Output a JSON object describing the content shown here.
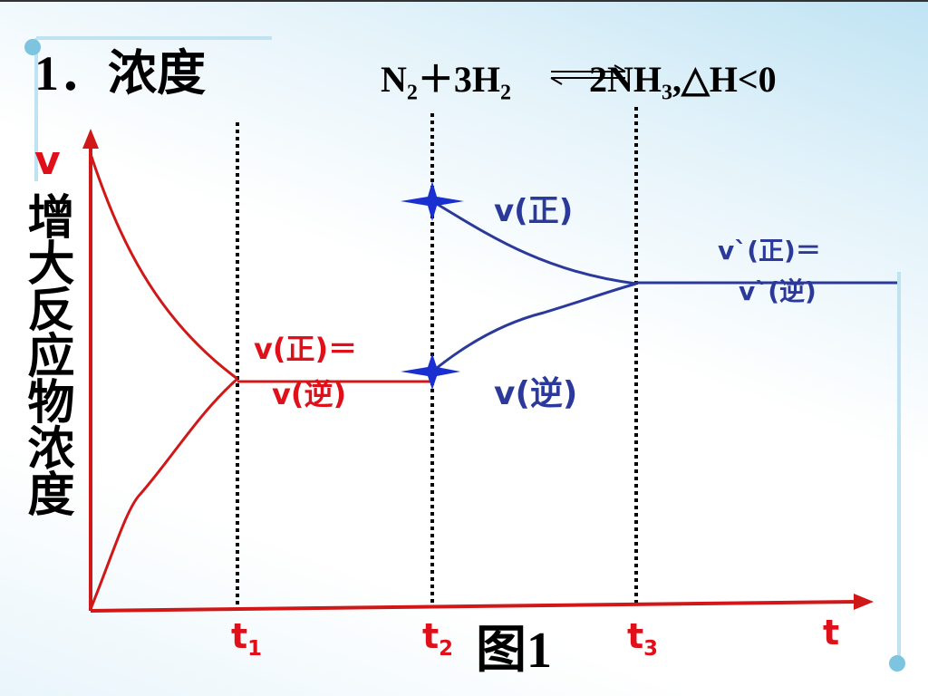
{
  "header": {
    "title": "1．浓度",
    "equation": {
      "n": "N",
      "n_sub": "2",
      "mid": "＋3H",
      "h_sub": "2",
      "product": "2NH",
      "nh_sub": "3",
      "tail": ",△H<0"
    }
  },
  "diagram": {
    "y_label": {
      "symbol": "v",
      "text": "增大反应物浓度"
    },
    "x_label": "t",
    "ticks": [
      {
        "main": "t",
        "sub": "1"
      },
      {
        "main": "t",
        "sub": "2"
      },
      {
        "main": "t",
        "sub": "3"
      }
    ],
    "caption": "图1",
    "labels": {
      "eq1_top": "v(正)＝",
      "eq1_bottom": "v(逆)",
      "forward": "v(正)",
      "reverse": "v(逆)",
      "eq2_top": "v`(正)＝",
      "eq2_bottom": "v`(逆)"
    }
  }
}
